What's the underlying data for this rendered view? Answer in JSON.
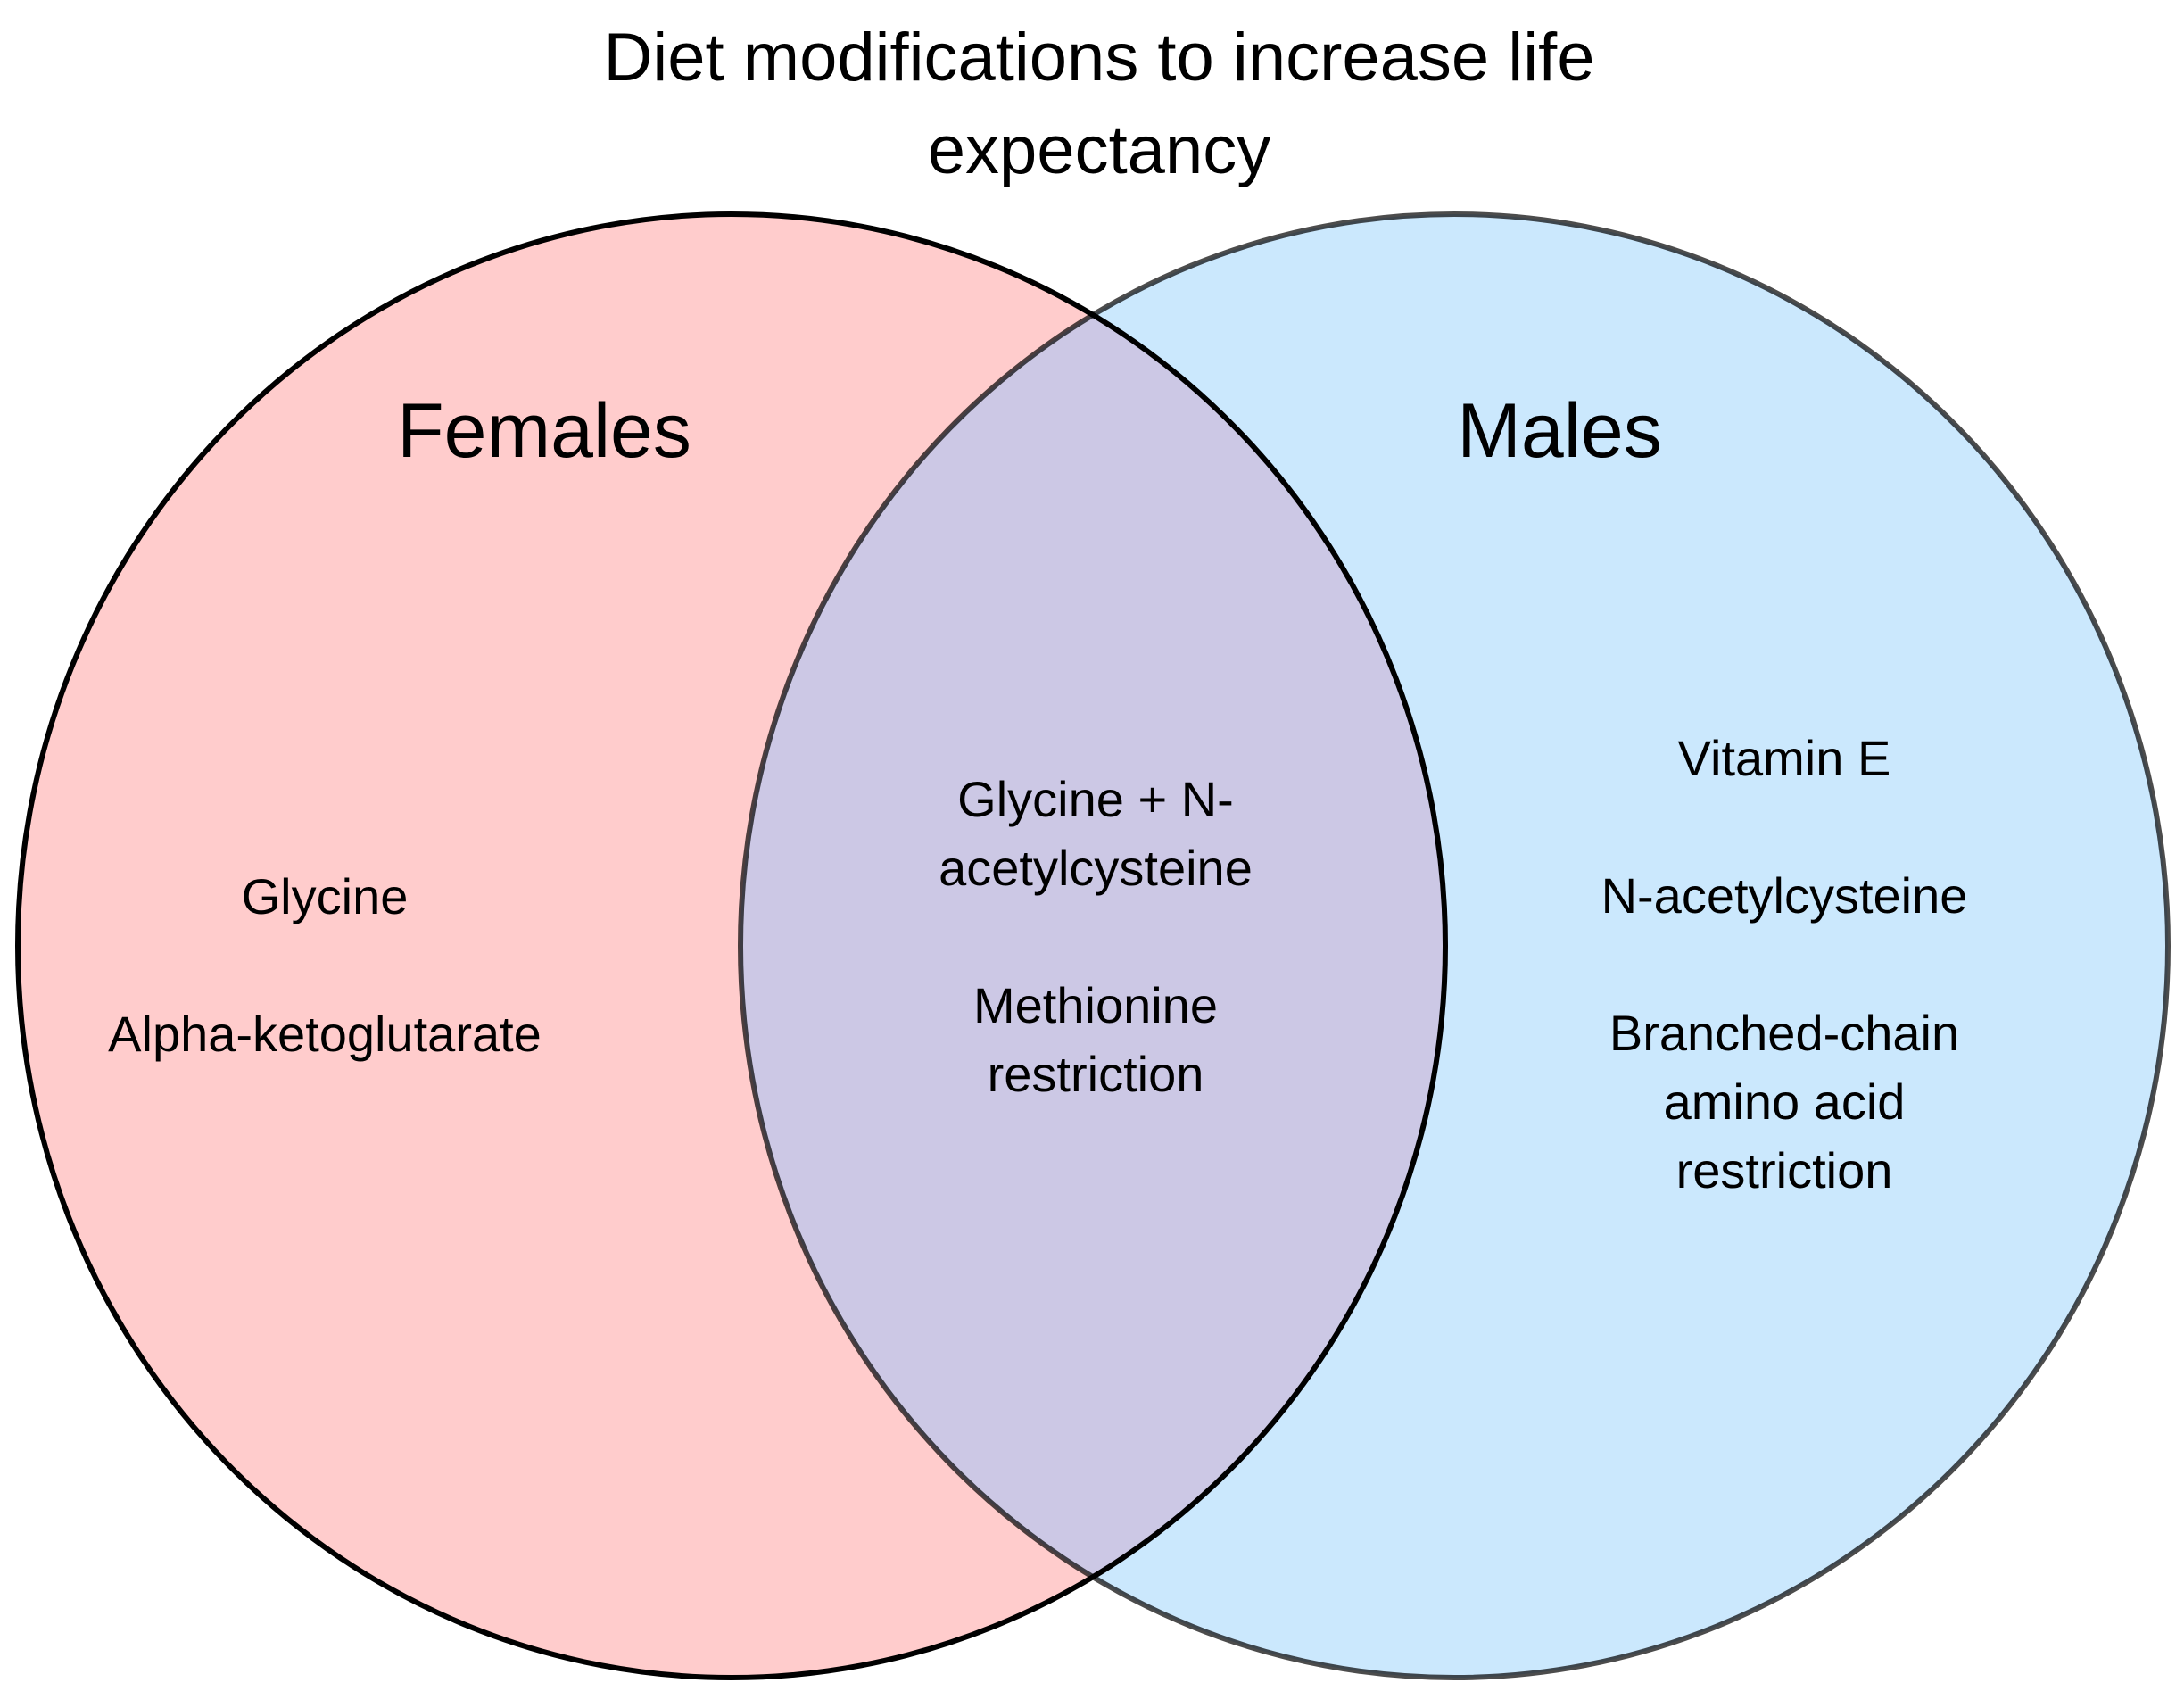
{
  "title": {
    "lines": [
      "Diet modifications to increase life",
      "expectancy"
    ]
  },
  "sets": {
    "left": {
      "label": "Females",
      "color": "#FFCCCC",
      "items": [
        {
          "lines": [
            "Glycine"
          ]
        },
        {
          "lines": [
            "Alpha-ketoglutarate"
          ]
        }
      ]
    },
    "right": {
      "label": "Males",
      "color": "#BFE3FC",
      "items": [
        {
          "lines": [
            "Vitamin E"
          ]
        },
        {
          "lines": [
            "N-acetylcysteine"
          ]
        },
        {
          "lines": [
            "Branched-chain",
            "amino acid",
            "restriction"
          ]
        }
      ]
    },
    "overlap": {
      "color": "#CCC8E5",
      "items": [
        {
          "lines": [
            "Glycine + N-",
            "acetylcysteine"
          ]
        },
        {
          "lines": [
            "Methionine",
            "restriction"
          ]
        }
      ]
    }
  }
}
